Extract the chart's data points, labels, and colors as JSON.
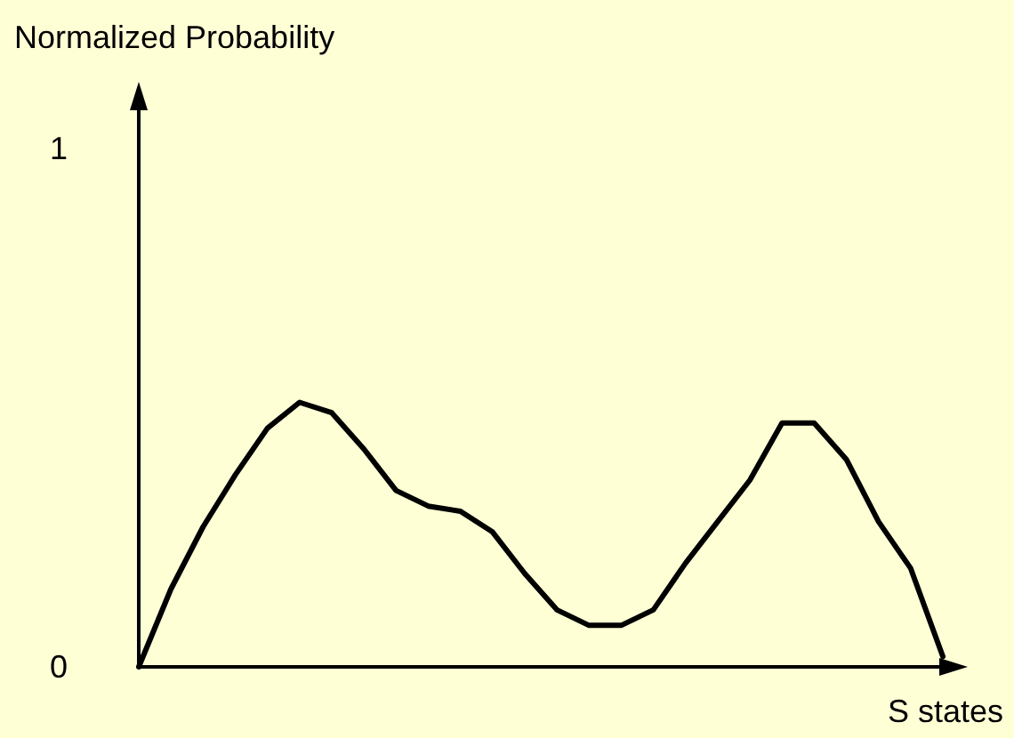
{
  "chart_data": {
    "type": "line",
    "xlabel": "S states",
    "ylabel": "Normalized Probability",
    "categories": [
      null,
      null,
      null,
      null,
      null,
      null,
      null,
      null,
      null,
      null,
      null,
      null,
      null,
      null,
      null,
      null,
      null,
      null,
      null,
      null,
      null,
      null,
      null,
      null,
      null,
      null
    ],
    "series": [
      {
        "color": "#000000",
        "values": [
          0,
          0.15,
          0.27,
          0.37,
          0.46,
          0.51,
          0.49,
          0.42,
          0.34,
          0.31,
          0.3,
          0.26,
          0.18,
          0.11,
          0.08,
          0.08,
          0.11,
          0.2,
          0.28,
          0.36,
          0.47,
          0.47,
          0.4,
          0.28,
          0.19,
          0.02
        ]
      }
    ],
    "ylim": [
      0,
      1.08
    ],
    "yticks": [
      0,
      1
    ],
    "grid": false,
    "marker": "none",
    "line_style": "solid"
  }
}
